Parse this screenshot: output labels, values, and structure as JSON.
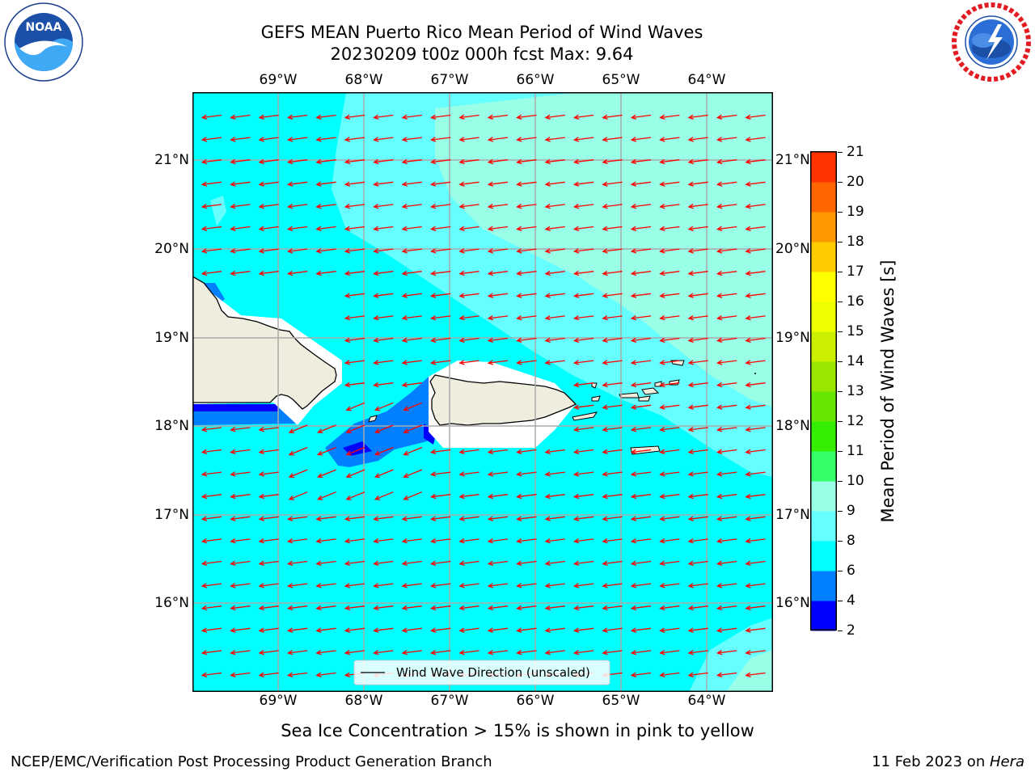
{
  "header": {
    "title_line1": "GEFS MEAN Puerto Rico Mean Period of Wind Waves",
    "title_line2": "20230209 t00z 000h fcst   Max: 9.64"
  },
  "logos": {
    "left": {
      "name": "NOAA",
      "ring_text": "NATIONAL OCEANIC AND ATMOSPHERIC ADMINISTRATION · U.S. DEPARTMENT OF COMMERCE",
      "inner_text": "NOAA"
    },
    "right": {
      "name": "National Weather Service",
      "ring_text": "NATIONAL WEATHER SERVICE"
    }
  },
  "map": {
    "lon_labels": [
      "69°W",
      "68°W",
      "67°W",
      "66°W",
      "65°W",
      "64°W"
    ],
    "lat_labels": [
      "21°N",
      "20°N",
      "19°N",
      "18°N",
      "17°N",
      "16°N"
    ],
    "legend_label": "Wind Wave Direction (unscaled)",
    "arrow_color": "#ff0000",
    "colors": {
      "ocean_6_8": "#00ffff",
      "ocean_8_9": "#66ffff",
      "ocean_9_10": "#99ffe6",
      "ocean_4_6": "#0080ff",
      "ocean_2_4": "#0000ff",
      "land": "#efedde",
      "nodata": "#ffffff"
    }
  },
  "colorbar": {
    "label": "Mean Period of Wind Waves [s]",
    "ticks": [
      "2",
      "4",
      "6",
      "8",
      "9",
      "10",
      "11",
      "12",
      "13",
      "14",
      "15",
      "16",
      "17",
      "18",
      "19",
      "20",
      "21"
    ],
    "colors_bottom_to_top": [
      "#0000ff",
      "#0080ff",
      "#00ffff",
      "#66ffff",
      "#99ffe6",
      "#33ff66",
      "#33ee00",
      "#66e600",
      "#99e600",
      "#ccee00",
      "#eeff00",
      "#ffff00",
      "#ffcc00",
      "#ff9900",
      "#ff6600",
      "#ff3300",
      "#ff0000"
    ]
  },
  "note": "Sea Ice Concentration > 15% is shown in pink to yellow",
  "footer": {
    "left": "NCEP/EMC/Verification Post Processing Product Generation Branch",
    "right_prefix": "11 Feb 2023 on ",
    "right_host": "Hera"
  }
}
